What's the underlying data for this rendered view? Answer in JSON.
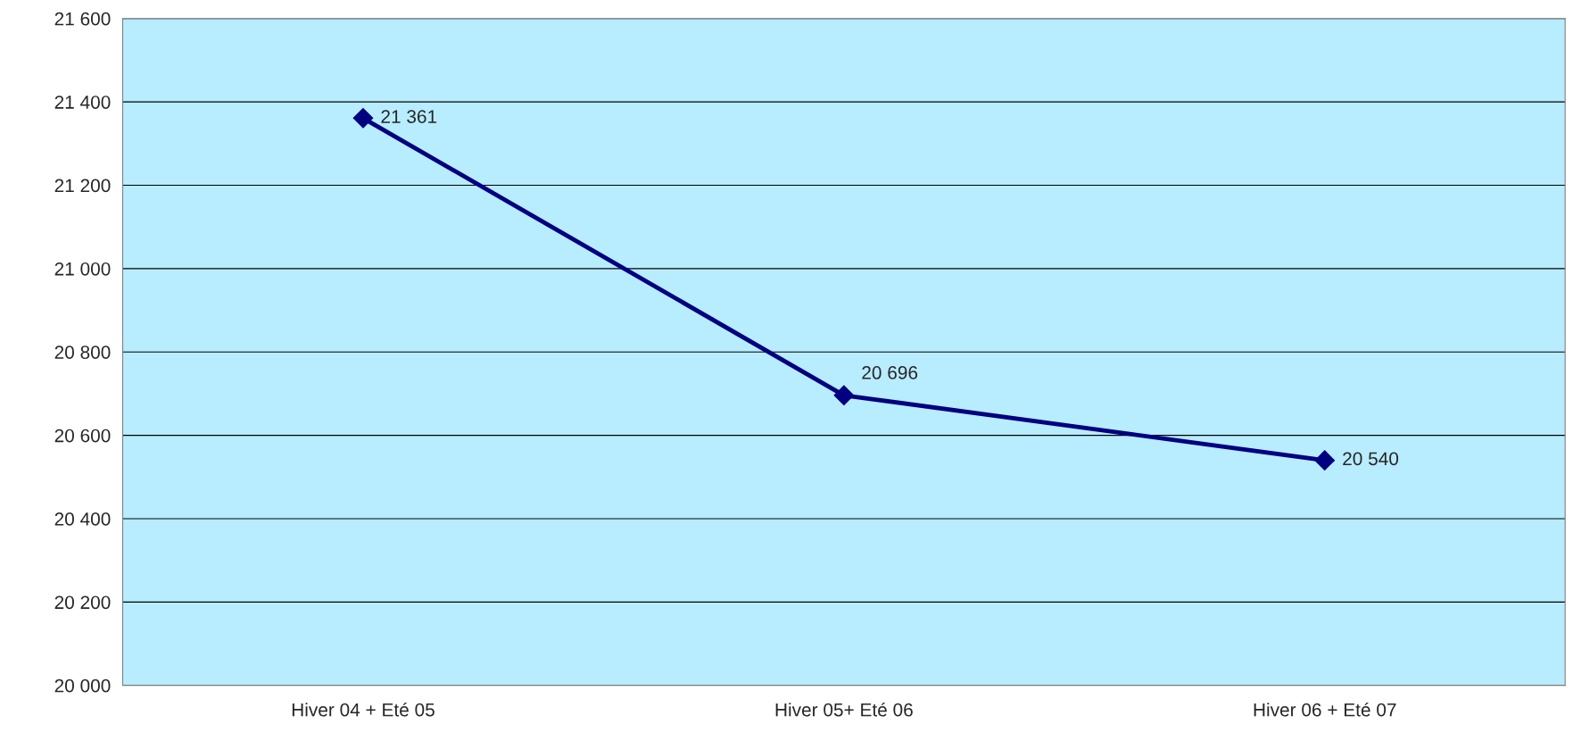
{
  "chart_data": {
    "type": "line",
    "categories": [
      "Hiver 04 + Eté 05",
      "Hiver 05+ Eté 06",
      "Hiver 06 + Eté 07"
    ],
    "series": [
      {
        "color": "#000080",
        "values": [
          21361,
          20696,
          20540
        ],
        "value_labels": [
          "21 361",
          "20 696",
          "20 540"
        ]
      }
    ],
    "ylim": [
      20000,
      21600
    ],
    "yticks": [
      {
        "value": 20000,
        "label": "20 000"
      },
      {
        "value": 20200,
        "label": "20 200"
      },
      {
        "value": 20400,
        "label": "20 400"
      },
      {
        "value": 20600,
        "label": "20 600"
      },
      {
        "value": 20800,
        "label": "20 800"
      },
      {
        "value": 21000,
        "label": "21 000"
      },
      {
        "value": 21200,
        "label": "21 200"
      },
      {
        "value": 21400,
        "label": "21 400"
      },
      {
        "value": 21600,
        "label": "21 600"
      }
    ],
    "grid": "y",
    "legend": false,
    "marker": "diamond",
    "line_style": "solid"
  }
}
